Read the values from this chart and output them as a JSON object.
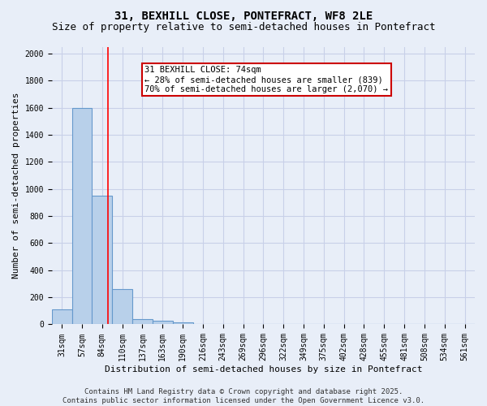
{
  "title_line1": "31, BEXHILL CLOSE, PONTEFRACT, WF8 2LE",
  "title_line2": "Size of property relative to semi-detached houses in Pontefract",
  "xlabel": "Distribution of semi-detached houses by size in Pontefract",
  "ylabel": "Number of semi-detached properties",
  "categories": [
    "31sqm",
    "57sqm",
    "84sqm",
    "110sqm",
    "137sqm",
    "163sqm",
    "190sqm",
    "216sqm",
    "243sqm",
    "269sqm",
    "296sqm",
    "322sqm",
    "349sqm",
    "375sqm",
    "402sqm",
    "428sqm",
    "455sqm",
    "481sqm",
    "508sqm",
    "534sqm",
    "561sqm"
  ],
  "values": [
    110,
    1600,
    950,
    260,
    40,
    25,
    15,
    0,
    0,
    0,
    0,
    0,
    0,
    0,
    0,
    0,
    0,
    0,
    0,
    0,
    0
  ],
  "bar_color": "#b8d0ea",
  "bar_edge_color": "#6699cc",
  "red_line_x": 2.3,
  "annotation_text": "31 BEXHILL CLOSE: 74sqm\n← 28% of semi-detached houses are smaller (839)\n70% of semi-detached houses are larger (2,070) →",
  "annotation_box_color": "#ffffff",
  "annotation_box_edge_color": "#cc0000",
  "ylim": [
    0,
    2050
  ],
  "yticks": [
    0,
    200,
    400,
    600,
    800,
    1000,
    1200,
    1400,
    1600,
    1800,
    2000
  ],
  "grid_color": "#c8d0e8",
  "background_color": "#e8eef8",
  "footer_line1": "Contains HM Land Registry data © Crown copyright and database right 2025.",
  "footer_line2": "Contains public sector information licensed under the Open Government Licence v3.0.",
  "title_fontsize": 10,
  "subtitle_fontsize": 9,
  "axis_label_fontsize": 8,
  "tick_fontsize": 7,
  "annotation_fontsize": 7.5,
  "footer_fontsize": 6.5
}
